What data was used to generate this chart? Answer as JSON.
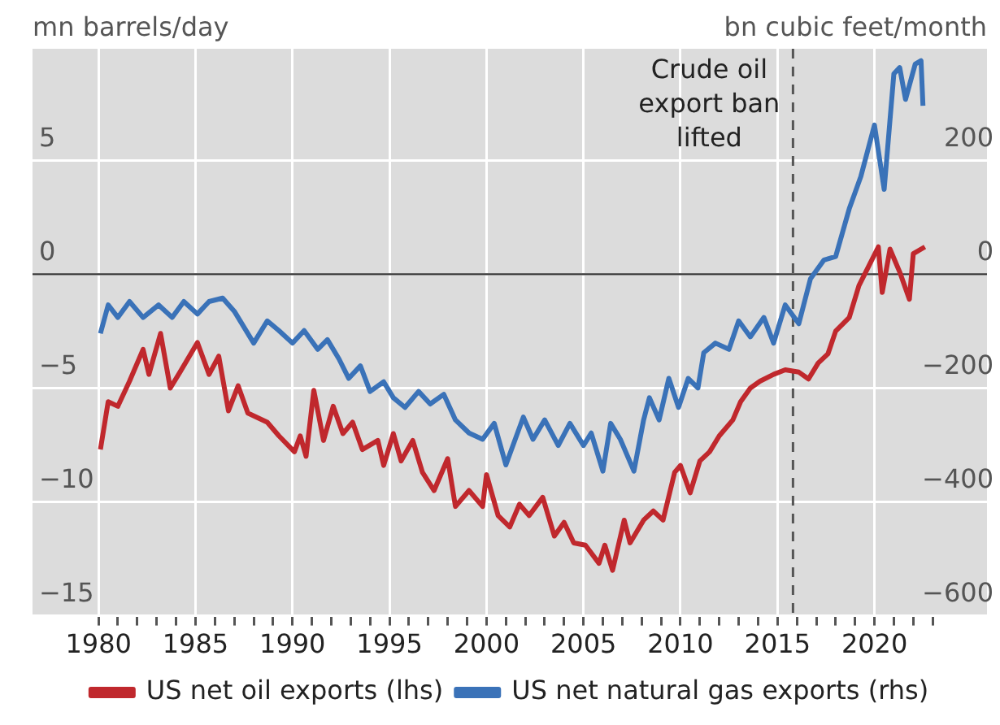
{
  "chart_data": {
    "type": "line",
    "ylabel": "mn barrels/day",
    "y2label": "bn cubic feet/month",
    "xlim": [
      1976.6,
      2025.8
    ],
    "xticks": [
      1980,
      {
        "value": 1981,
        "label": null
      },
      {
        "value": 1982,
        "label": null
      },
      {
        "value": 1983,
        "label": null
      },
      {
        "value": 1984,
        "label": null
      },
      1985,
      {
        "value": 1986,
        "label": null
      },
      {
        "value": 1987,
        "label": null
      },
      {
        "value": 1988,
        "label": null
      },
      {
        "value": 1989,
        "label": null
      },
      1990,
      {
        "value": 1991,
        "label": null
      },
      {
        "value": 1992,
        "label": null
      },
      {
        "value": 1993,
        "label": null
      },
      {
        "value": 1994,
        "label": null
      },
      1995,
      {
        "value": 1996,
        "label": null
      },
      {
        "value": 1997,
        "label": null
      },
      {
        "value": 1998,
        "label": null
      },
      {
        "value": 1999,
        "label": null
      },
      2000,
      {
        "value": 2001,
        "label": null
      },
      {
        "value": 2002,
        "label": null
      },
      {
        "value": 2003,
        "label": null
      },
      {
        "value": 2004,
        "label": null
      },
      2005,
      {
        "value": 2006,
        "label": null
      },
      {
        "value": 2007,
        "label": null
      },
      {
        "value": 2008,
        "label": null
      },
      {
        "value": 2009,
        "label": null
      },
      2010,
      {
        "value": 2011,
        "label": null
      },
      {
        "value": 2012,
        "label": null
      },
      {
        "value": 2013,
        "label": null
      },
      {
        "value": 2014,
        "label": null
      },
      2015,
      {
        "value": 2016,
        "label": null
      },
      {
        "value": 2017,
        "label": null
      },
      {
        "value": 2018,
        "label": null
      },
      {
        "value": 2019,
        "label": null
      },
      2020,
      {
        "value": 2021,
        "label": null
      },
      {
        "value": 2022,
        "label": null
      },
      {
        "value": 2023,
        "label": null
      }
    ],
    "ylim": [
      -15,
      9.9
    ],
    "yticks": [
      {
        "value": -15,
        "label": "−15"
      },
      {
        "value": -10,
        "label": "−10"
      },
      {
        "value": -5,
        "label": "−5"
      },
      0,
      5
    ],
    "y2lim": [
      -600,
      396
    ],
    "y2ticks": [
      {
        "value": -600,
        "label": "−600"
      },
      {
        "value": -400,
        "label": "−400"
      },
      {
        "value": -200,
        "label": "−200"
      },
      0,
      200
    ],
    "grid": true,
    "legend": "bottom",
    "line_style": "solid",
    "marker": "none",
    "ref_lines": [
      {
        "axis": "y",
        "value": 0,
        "color": "#333333",
        "line_style": "solid"
      },
      {
        "axis": "x",
        "value": 2015.8,
        "label": "Crude oil\nexport ban\nlifted",
        "color": "#555555",
        "line_style": "dashed"
      }
    ],
    "series": [
      {
        "name": "US net oil exports (lhs)",
        "color": "#c0282d",
        "axis": "y",
        "x": [
          1980.1,
          1980.5,
          1981.0,
          1981.6,
          1982.3,
          1982.6,
          1983.2,
          1983.7,
          1984.2,
          1985.1,
          1985.7,
          1986.2,
          1986.7,
          1987.2,
          1987.7,
          1988.7,
          1989.3,
          1990.1,
          1990.4,
          1990.7,
          1991.1,
          1991.6,
          1992.1,
          1992.6,
          1993.1,
          1993.6,
          1994.4,
          1994.7,
          1995.2,
          1995.6,
          1996.2,
          1996.7,
          1997.3,
          1998.0,
          1998.4,
          1999.1,
          1999.8,
          2000.0,
          2000.6,
          2001.2,
          2001.7,
          2002.2,
          2002.9,
          2003.5,
          2004.0,
          2004.5,
          2005.1,
          2005.8,
          2006.1,
          2006.5,
          2007.1,
          2007.4,
          2008.1,
          2008.6,
          2009.1,
          2009.7,
          2010.0,
          2010.5,
          2011.0,
          2011.5,
          2012.0,
          2012.7,
          2013.1,
          2013.6,
          2014.1,
          2014.8,
          2015.4,
          2016.1,
          2016.6,
          2017.1,
          2017.6,
          2018.0,
          2018.7,
          2019.2,
          2019.7,
          2020.2,
          2020.4,
          2020.8,
          2021.3,
          2021.8,
          2022.0,
          2022.6
        ],
        "values": [
          -7.7,
          -5.6,
          -5.8,
          -4.7,
          -3.3,
          -4.4,
          -2.6,
          -5.0,
          -4.3,
          -3.0,
          -4.4,
          -3.6,
          -6.0,
          -4.9,
          -6.1,
          -6.5,
          -7.1,
          -7.8,
          -7.1,
          -8.0,
          -5.1,
          -7.3,
          -5.8,
          -7.0,
          -6.5,
          -7.7,
          -7.3,
          -8.4,
          -7.0,
          -8.2,
          -7.3,
          -8.7,
          -9.5,
          -8.1,
          -10.2,
          -9.5,
          -10.2,
          -8.8,
          -10.6,
          -11.1,
          -10.1,
          -10.6,
          -9.8,
          -11.5,
          -10.9,
          -11.8,
          -11.9,
          -12.7,
          -11.9,
          -13.0,
          -10.8,
          -11.8,
          -10.8,
          -10.4,
          -10.8,
          -8.7,
          -8.4,
          -9.6,
          -8.2,
          -7.8,
          -7.1,
          -6.4,
          -5.6,
          -5.0,
          -4.7,
          -4.4,
          -4.2,
          -4.3,
          -4.6,
          -3.9,
          -3.5,
          -2.5,
          -1.9,
          -0.5,
          0.35,
          1.2,
          -0.8,
          1.1,
          0.1,
          -1.1,
          0.9,
          1.2
        ]
      },
      {
        "name": "US net natural gas exports (rhs)",
        "color": "#3a72b8",
        "axis": "y2",
        "x": [
          1980.1,
          1980.5,
          1981.0,
          1981.6,
          1982.3,
          1983.1,
          1983.8,
          1984.4,
          1985.1,
          1985.7,
          1986.4,
          1987.0,
          1988.0,
          1988.7,
          1989.3,
          1990.0,
          1990.6,
          1991.3,
          1991.8,
          1992.4,
          1992.9,
          1993.5,
          1994.0,
          1994.7,
          1995.2,
          1995.8,
          1996.5,
          1997.1,
          1997.8,
          1998.4,
          1999.1,
          1999.8,
          2000.4,
          2001.0,
          2001.6,
          2001.9,
          2002.4,
          2003.0,
          2003.7,
          2004.3,
          2005.0,
          2005.4,
          2006.0,
          2006.4,
          2006.9,
          2007.6,
          2008.1,
          2008.4,
          2008.9,
          2009.4,
          2009.9,
          2010.4,
          2010.9,
          2011.2,
          2011.8,
          2012.5,
          2013.0,
          2013.6,
          2014.3,
          2014.8,
          2015.4,
          2016.1,
          2016.7,
          2017.4,
          2018.0,
          2018.7,
          2019.3,
          2020.0,
          2020.5,
          2021.0,
          2021.3,
          2021.6,
          2022.1,
          2022.4,
          2022.5
        ],
        "values": [
          -104,
          -54,
          -76,
          -48,
          -76,
          -54,
          -76,
          -48,
          -70,
          -48,
          -42,
          -65,
          -121,
          -82,
          -99,
          -121,
          -99,
          -132,
          -115,
          -149,
          -183,
          -161,
          -206,
          -189,
          -217,
          -234,
          -206,
          -228,
          -211,
          -256,
          -279,
          -290,
          -262,
          -335,
          -279,
          -251,
          -290,
          -256,
          -301,
          -262,
          -301,
          -279,
          -346,
          -262,
          -290,
          -346,
          -256,
          -217,
          -256,
          -183,
          -234,
          -183,
          -200,
          -138,
          -121,
          -132,
          -82,
          -110,
          -76,
          -121,
          -54,
          -87,
          -8,
          25,
          31,
          115,
          172,
          262,
          149,
          352,
          363,
          307,
          369,
          375,
          296
        ]
      }
    ]
  }
}
